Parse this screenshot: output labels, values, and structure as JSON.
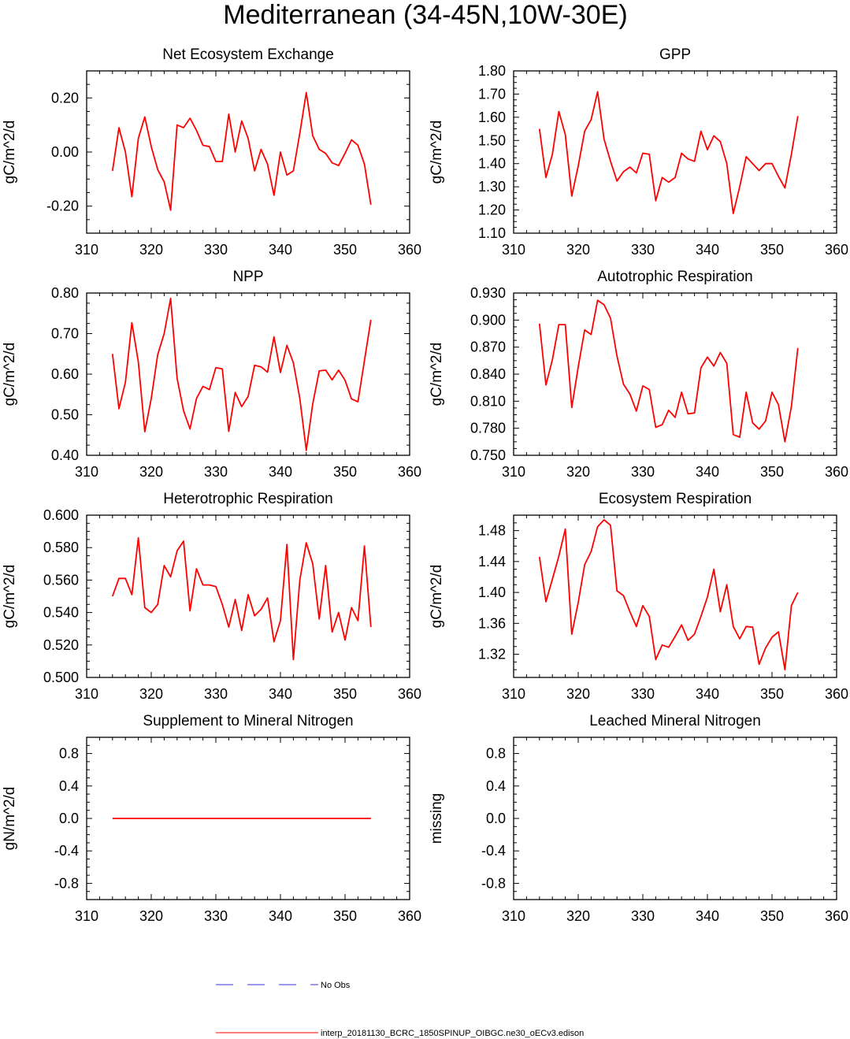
{
  "title": "Mediterranean (34-45N,10W-30E)",
  "colors": {
    "model_line": "#ff0000",
    "obs_line": "#3333dd",
    "axis": "#000000"
  },
  "legend": {
    "obs_label": "No Obs",
    "model_label": "interp_20181130_BCRC_1850SPINUP_OIBGC.ne30_oECv3.edison"
  },
  "chart_data": [
    {
      "type": "line",
      "title": "Net Ecosystem Exchange",
      "ylabel": "gC/m^2/d",
      "xlim": [
        310,
        360
      ],
      "ylim": [
        -0.3,
        0.3
      ],
      "xticks": [
        "310",
        "320",
        "330",
        "340",
        "350",
        "360"
      ],
      "yticks": [
        {
          "v": -0.2,
          "label": "-0.20"
        },
        {
          "v": 0.0,
          "label": "0.00"
        },
        {
          "v": 0.2,
          "label": "0.20"
        }
      ],
      "x": [
        314,
        315,
        316,
        317,
        318,
        319,
        320,
        321,
        322,
        323,
        324,
        325,
        326,
        327,
        328,
        329,
        330,
        331,
        332,
        333,
        334,
        335,
        336,
        337,
        338,
        339,
        340,
        341,
        342,
        343,
        344,
        345,
        346,
        347,
        348,
        349,
        350,
        351,
        352,
        353,
        354
      ],
      "series": [
        {
          "name": "model",
          "values": [
            -0.07,
            0.09,
            0.0,
            -0.165,
            0.05,
            0.13,
            0.02,
            -0.065,
            -0.11,
            -0.215,
            0.1,
            0.09,
            0.125,
            0.08,
            0.025,
            0.02,
            -0.035,
            -0.035,
            0.14,
            0.0,
            0.115,
            0.05,
            -0.07,
            0.01,
            -0.045,
            -0.16,
            0.0,
            -0.085,
            -0.07,
            0.07,
            0.22,
            0.06,
            0.01,
            -0.005,
            -0.04,
            -0.05,
            -0.005,
            0.045,
            0.025,
            -0.045,
            -0.195
          ]
        }
      ]
    },
    {
      "type": "line",
      "title": "GPP",
      "ylabel": "gC/m^2/d",
      "xlim": [
        310,
        360
      ],
      "ylim": [
        1.1,
        1.8
      ],
      "xticks": [
        "310",
        "320",
        "330",
        "340",
        "350",
        "360"
      ],
      "yticks": [
        {
          "v": 1.1,
          "label": "1.10"
        },
        {
          "v": 1.2,
          "label": "1.20"
        },
        {
          "v": 1.3,
          "label": "1.30"
        },
        {
          "v": 1.4,
          "label": "1.40"
        },
        {
          "v": 1.5,
          "label": "1.50"
        },
        {
          "v": 1.6,
          "label": "1.60"
        },
        {
          "v": 1.7,
          "label": "1.70"
        },
        {
          "v": 1.8,
          "label": "1.80"
        }
      ],
      "x": [
        314,
        315,
        316,
        317,
        318,
        319,
        320,
        321,
        322,
        323,
        324,
        325,
        326,
        327,
        328,
        329,
        330,
        331,
        332,
        333,
        334,
        335,
        336,
        337,
        338,
        339,
        340,
        341,
        342,
        343,
        344,
        345,
        346,
        347,
        348,
        349,
        350,
        351,
        352,
        353,
        354
      ],
      "series": [
        {
          "name": "model",
          "values": [
            1.55,
            1.34,
            1.44,
            1.625,
            1.525,
            1.26,
            1.39,
            1.54,
            1.59,
            1.71,
            1.505,
            1.41,
            1.325,
            1.365,
            1.385,
            1.36,
            1.445,
            1.44,
            1.24,
            1.34,
            1.32,
            1.34,
            1.445,
            1.42,
            1.41,
            1.54,
            1.46,
            1.52,
            1.495,
            1.4,
            1.185,
            1.3,
            1.43,
            1.4,
            1.37,
            1.4,
            1.4,
            1.345,
            1.295,
            1.44,
            1.605
          ]
        }
      ]
    },
    {
      "type": "line",
      "title": "NPP",
      "ylabel": "gC/m^2/d",
      "xlim": [
        310,
        360
      ],
      "ylim": [
        0.4,
        0.8
      ],
      "xticks": [
        "310",
        "320",
        "330",
        "340",
        "350",
        "360"
      ],
      "yticks": [
        {
          "v": 0.4,
          "label": "0.40"
        },
        {
          "v": 0.5,
          "label": "0.50"
        },
        {
          "v": 0.6,
          "label": "0.60"
        },
        {
          "v": 0.7,
          "label": "0.70"
        },
        {
          "v": 0.8,
          "label": "0.80"
        }
      ],
      "x": [
        314,
        315,
        316,
        317,
        318,
        319,
        320,
        321,
        322,
        323,
        324,
        325,
        326,
        327,
        328,
        329,
        330,
        331,
        332,
        333,
        334,
        335,
        336,
        337,
        338,
        339,
        340,
        341,
        342,
        343,
        344,
        345,
        346,
        347,
        348,
        349,
        350,
        351,
        352,
        353,
        354
      ],
      "series": [
        {
          "name": "model",
          "values": [
            0.65,
            0.515,
            0.58,
            0.727,
            0.63,
            0.458,
            0.54,
            0.648,
            0.7,
            0.787,
            0.59,
            0.51,
            0.465,
            0.54,
            0.57,
            0.562,
            0.616,
            0.613,
            0.459,
            0.555,
            0.52,
            0.545,
            0.622,
            0.618,
            0.605,
            0.692,
            0.604,
            0.671,
            0.628,
            0.54,
            0.412,
            0.527,
            0.608,
            0.61,
            0.586,
            0.61,
            0.585,
            0.539,
            0.532,
            0.633,
            0.734
          ]
        }
      ]
    },
    {
      "type": "line",
      "title": "Autotrophic Respiration",
      "ylabel": "gC/m^2/d",
      "xlim": [
        310,
        360
      ],
      "ylim": [
        0.75,
        0.93
      ],
      "xticks": [
        "310",
        "320",
        "330",
        "340",
        "350",
        "360"
      ],
      "yticks": [
        {
          "v": 0.75,
          "label": "0.750"
        },
        {
          "v": 0.78,
          "label": "0.780"
        },
        {
          "v": 0.81,
          "label": "0.810"
        },
        {
          "v": 0.84,
          "label": "0.840"
        },
        {
          "v": 0.87,
          "label": "0.870"
        },
        {
          "v": 0.9,
          "label": "0.900"
        },
        {
          "v": 0.93,
          "label": "0.930"
        }
      ],
      "x": [
        314,
        315,
        316,
        317,
        318,
        319,
        320,
        321,
        322,
        323,
        324,
        325,
        326,
        327,
        328,
        329,
        330,
        331,
        332,
        333,
        334,
        335,
        336,
        337,
        338,
        339,
        340,
        341,
        342,
        343,
        344,
        345,
        346,
        347,
        348,
        349,
        350,
        351,
        352,
        353,
        354
      ],
      "series": [
        {
          "name": "model",
          "values": [
            0.896,
            0.828,
            0.856,
            0.895,
            0.895,
            0.803,
            0.848,
            0.889,
            0.884,
            0.922,
            0.917,
            0.902,
            0.86,
            0.829,
            0.818,
            0.799,
            0.827,
            0.823,
            0.781,
            0.784,
            0.8,
            0.792,
            0.82,
            0.796,
            0.797,
            0.847,
            0.859,
            0.849,
            0.864,
            0.852,
            0.773,
            0.77,
            0.82,
            0.786,
            0.779,
            0.788,
            0.82,
            0.806,
            0.765,
            0.804,
            0.869
          ]
        }
      ]
    },
    {
      "type": "line",
      "title": "Heterotrophic Respiration",
      "ylabel": "gC/m^2/d",
      "xlim": [
        310,
        360
      ],
      "ylim": [
        0.5,
        0.6
      ],
      "xticks": [
        "310",
        "320",
        "330",
        "340",
        "350",
        "360"
      ],
      "yticks": [
        {
          "v": 0.5,
          "label": "0.500"
        },
        {
          "v": 0.52,
          "label": "0.520"
        },
        {
          "v": 0.54,
          "label": "0.540"
        },
        {
          "v": 0.56,
          "label": "0.560"
        },
        {
          "v": 0.58,
          "label": "0.580"
        },
        {
          "v": 0.6,
          "label": "0.600"
        }
      ],
      "x": [
        314,
        315,
        316,
        317,
        318,
        319,
        320,
        321,
        322,
        323,
        324,
        325,
        326,
        327,
        328,
        329,
        330,
        331,
        332,
        333,
        334,
        335,
        336,
        337,
        338,
        339,
        340,
        341,
        342,
        343,
        344,
        345,
        346,
        347,
        348,
        349,
        350,
        351,
        352,
        353,
        354
      ],
      "series": [
        {
          "name": "model",
          "values": [
            0.55,
            0.561,
            0.561,
            0.551,
            0.586,
            0.543,
            0.54,
            0.545,
            0.569,
            0.562,
            0.578,
            0.584,
            0.541,
            0.567,
            0.557,
            0.557,
            0.556,
            0.545,
            0.531,
            0.548,
            0.529,
            0.551,
            0.538,
            0.542,
            0.549,
            0.522,
            0.535,
            0.582,
            0.511,
            0.56,
            0.583,
            0.57,
            0.536,
            0.569,
            0.528,
            0.54,
            0.523,
            0.543,
            0.535,
            0.581,
            0.531
          ]
        }
      ]
    },
    {
      "type": "line",
      "title": "Ecosystem Respiration",
      "ylabel": "gC/m^2/d",
      "xlim": [
        310,
        360
      ],
      "ylim": [
        1.29,
        1.5
      ],
      "xticks": [
        "310",
        "320",
        "330",
        "340",
        "350",
        "360"
      ],
      "yticks": [
        {
          "v": 1.32,
          "label": "1.32"
        },
        {
          "v": 1.36,
          "label": "1.36"
        },
        {
          "v": 1.4,
          "label": "1.40"
        },
        {
          "v": 1.44,
          "label": "1.44"
        },
        {
          "v": 1.48,
          "label": "1.48"
        }
      ],
      "x": [
        314,
        315,
        316,
        317,
        318,
        319,
        320,
        321,
        322,
        323,
        324,
        325,
        326,
        327,
        328,
        329,
        330,
        331,
        332,
        333,
        334,
        335,
        336,
        337,
        338,
        339,
        340,
        341,
        342,
        343,
        344,
        345,
        346,
        347,
        348,
        349,
        350,
        351,
        352,
        353,
        354
      ],
      "series": [
        {
          "name": "model",
          "values": [
            1.446,
            1.388,
            1.417,
            1.447,
            1.482,
            1.346,
            1.387,
            1.436,
            1.453,
            1.485,
            1.494,
            1.487,
            1.402,
            1.396,
            1.375,
            1.356,
            1.383,
            1.369,
            1.313,
            1.332,
            1.329,
            1.343,
            1.358,
            1.338,
            1.346,
            1.369,
            1.394,
            1.43,
            1.375,
            1.41,
            1.356,
            1.34,
            1.356,
            1.355,
            1.307,
            1.328,
            1.342,
            1.349,
            1.3,
            1.383,
            1.4
          ]
        }
      ]
    },
    {
      "type": "line",
      "title": "Supplement to Mineral Nitrogen",
      "ylabel": "gN/m^2/d",
      "xlim": [
        310,
        360
      ],
      "ylim": [
        -1.0,
        1.0
      ],
      "xticks": [
        "310",
        "320",
        "330",
        "340",
        "350",
        "360"
      ],
      "yticks": [
        {
          "v": -0.8,
          "label": "-0.8"
        },
        {
          "v": -0.4,
          "label": "-0.4"
        },
        {
          "v": 0.0,
          "label": "0.0"
        },
        {
          "v": 0.4,
          "label": "0.4"
        },
        {
          "v": 0.8,
          "label": "0.8"
        }
      ],
      "x": [
        314,
        354
      ],
      "series": [
        {
          "name": "model",
          "values": [
            0.0,
            0.0
          ]
        }
      ]
    },
    {
      "type": "line",
      "title": "Leached Mineral Nitrogen",
      "ylabel": "missing",
      "xlim": [
        310,
        360
      ],
      "ylim": [
        -1.0,
        1.0
      ],
      "xticks": [
        "310",
        "320",
        "330",
        "340",
        "350",
        "360"
      ],
      "yticks": [
        {
          "v": -0.8,
          "label": "-0.8"
        },
        {
          "v": -0.4,
          "label": "-0.4"
        },
        {
          "v": 0.0,
          "label": "0.0"
        },
        {
          "v": 0.4,
          "label": "0.4"
        },
        {
          "v": 0.8,
          "label": "0.8"
        }
      ],
      "x": [],
      "series": []
    }
  ]
}
